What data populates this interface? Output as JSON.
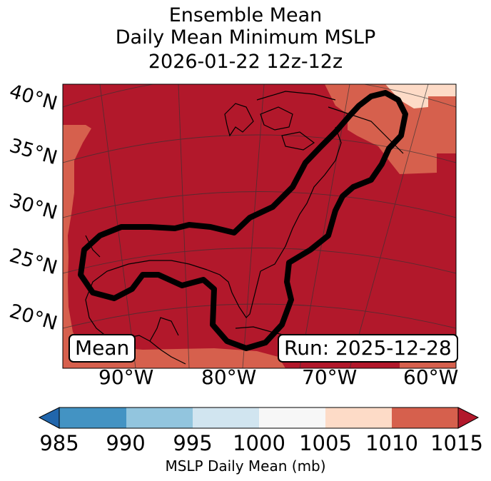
{
  "title": {
    "line1": "Ensemble Mean",
    "line2": "Daily Mean Minimum MSLP",
    "line3": "2026-01-22 12z-12z"
  },
  "map": {
    "lat_labels": [
      "40°N",
      "35°N",
      "30°N",
      "25°N",
      "20°N"
    ],
    "lon_labels": [
      "90°W",
      "80°W",
      "70°W",
      "60°W"
    ],
    "mean_label": "Mean",
    "run_label": "Run: 2025-12-28",
    "colors": {
      "c985": "#2166ac",
      "c985_990": "#4393c3",
      "c990_995": "#92c5de",
      "c995_1000": "#d1e5f0",
      "c1000_1005": "#f7f7f7",
      "c1005_1010": "#fddbc7",
      "c1010_1015": "#d6604d",
      "c1015": "#b2182b",
      "contour": "#000000"
    }
  },
  "colorbar": {
    "ticks": [
      "985",
      "990",
      "995",
      "1000",
      "1005",
      "1010",
      "1015"
    ],
    "label": "MSLP Daily Mean (mb)"
  }
}
